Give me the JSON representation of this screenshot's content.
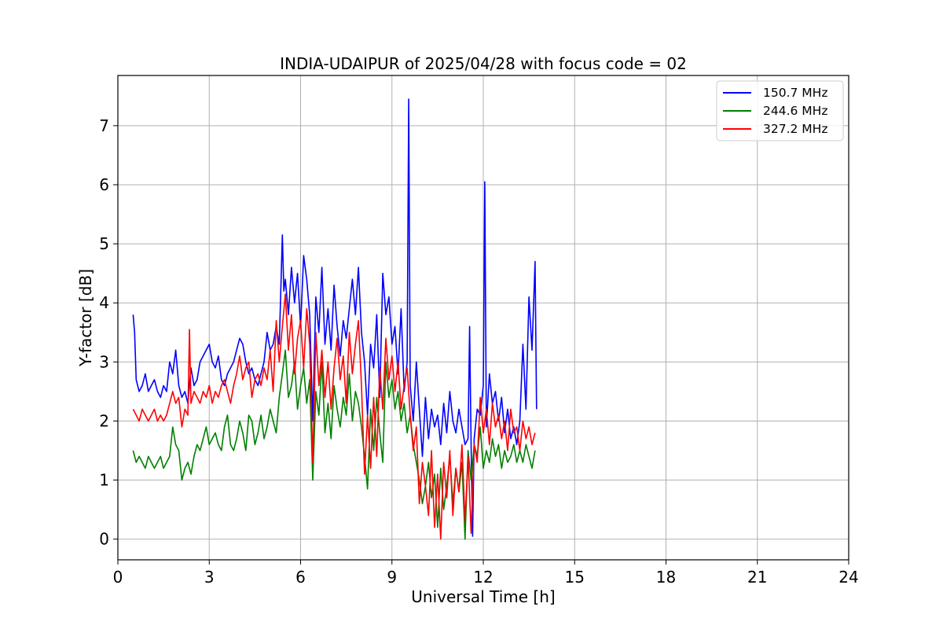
{
  "chart_data": {
    "type": "line",
    "title": "INDIA-UDAIPUR of 2025/04/28 with focus code = 02",
    "xlabel": "Universal Time [h]",
    "ylabel": "Y-factor [dB]",
    "xlim": [
      0,
      24
    ],
    "ylim": [
      -0.35,
      7.85
    ],
    "xticks": [
      0,
      3,
      6,
      9,
      12,
      15,
      18,
      21,
      24
    ],
    "yticks": [
      0,
      1,
      2,
      3,
      4,
      5,
      6,
      7
    ],
    "grid": true,
    "legend_position": "top-right",
    "series": [
      {
        "name": "150.7 MHz",
        "color": "#0000ff",
        "x": [
          0.5,
          0.55,
          0.6,
          0.7,
          0.8,
          0.9,
          1.0,
          1.1,
          1.2,
          1.3,
          1.4,
          1.5,
          1.6,
          1.7,
          1.8,
          1.9,
          2.0,
          2.1,
          2.2,
          2.3,
          2.4,
          2.5,
          2.6,
          2.7,
          2.8,
          2.9,
          3.0,
          3.1,
          3.2,
          3.3,
          3.4,
          3.5,
          3.6,
          3.7,
          3.8,
          3.9,
          4.0,
          4.1,
          4.2,
          4.3,
          4.4,
          4.5,
          4.6,
          4.7,
          4.8,
          4.9,
          5.0,
          5.1,
          5.2,
          5.3,
          5.4,
          5.45,
          5.5,
          5.6,
          5.7,
          5.8,
          5.9,
          6.0,
          6.1,
          6.2,
          6.3,
          6.4,
          6.5,
          6.6,
          6.7,
          6.8,
          6.9,
          7.0,
          7.1,
          7.2,
          7.3,
          7.4,
          7.5,
          7.6,
          7.7,
          7.8,
          7.9,
          8.0,
          8.1,
          8.2,
          8.3,
          8.4,
          8.5,
          8.6,
          8.7,
          8.8,
          8.9,
          9.0,
          9.1,
          9.2,
          9.3,
          9.4,
          9.5,
          9.55,
          9.6,
          9.7,
          9.8,
          9.9,
          10.0,
          10.1,
          10.2,
          10.3,
          10.4,
          10.5,
          10.6,
          10.7,
          10.8,
          10.9,
          11.0,
          11.1,
          11.2,
          11.3,
          11.4,
          11.5,
          11.55,
          11.6,
          11.65,
          11.7,
          11.8,
          11.9,
          12.0,
          12.05,
          12.1,
          12.2,
          12.3,
          12.4,
          12.5,
          12.6,
          12.7,
          12.8,
          12.9,
          13.0,
          13.1,
          13.2,
          13.3,
          13.4,
          13.5,
          13.6,
          13.7,
          13.75
        ],
        "values": [
          3.8,
          3.5,
          2.7,
          2.5,
          2.6,
          2.8,
          2.5,
          2.6,
          2.7,
          2.5,
          2.4,
          2.6,
          2.5,
          3.0,
          2.8,
          3.2,
          2.6,
          2.4,
          2.5,
          2.3,
          2.9,
          2.6,
          2.7,
          3.0,
          3.1,
          3.2,
          3.3,
          3.0,
          2.9,
          3.1,
          2.7,
          2.6,
          2.8,
          2.9,
          3.0,
          3.2,
          3.4,
          3.3,
          3.0,
          2.8,
          2.9,
          2.7,
          2.6,
          2.8,
          3.0,
          3.5,
          3.2,
          3.3,
          3.6,
          3.3,
          5.15,
          4.2,
          4.4,
          3.8,
          4.6,
          4.0,
          4.5,
          3.6,
          4.8,
          4.4,
          3.8,
          2.0,
          4.1,
          3.5,
          4.6,
          3.3,
          3.9,
          3.2,
          4.3,
          3.6,
          3.1,
          3.7,
          3.4,
          3.9,
          4.4,
          3.8,
          4.6,
          3.5,
          3.0,
          2.1,
          3.3,
          2.9,
          3.8,
          2.4,
          4.5,
          3.8,
          4.1,
          3.3,
          3.6,
          2.8,
          3.9,
          2.5,
          3.0,
          7.45,
          2.6,
          2.0,
          3.0,
          2.2,
          1.4,
          2.4,
          1.7,
          2.2,
          1.9,
          2.1,
          1.6,
          2.3,
          1.8,
          2.5,
          2.0,
          1.8,
          2.2,
          1.9,
          1.6,
          1.7,
          3.6,
          1.6,
          0.05,
          1.7,
          2.2,
          2.1,
          2.6,
          6.05,
          1.9,
          2.8,
          2.3,
          2.5,
          2.0,
          2.4,
          1.8,
          2.2,
          1.7,
          1.9,
          1.6,
          2.0,
          3.3,
          2.2,
          4.1,
          3.2,
          4.7,
          2.2
        ]
      },
      {
        "name": "244.6 MHz",
        "color": "#008000",
        "x": [
          0.5,
          0.6,
          0.7,
          0.8,
          0.9,
          1.0,
          1.1,
          1.2,
          1.3,
          1.4,
          1.5,
          1.6,
          1.7,
          1.8,
          1.9,
          2.0,
          2.1,
          2.2,
          2.3,
          2.4,
          2.5,
          2.6,
          2.7,
          2.8,
          2.9,
          3.0,
          3.1,
          3.2,
          3.3,
          3.4,
          3.5,
          3.6,
          3.7,
          3.8,
          3.9,
          4.0,
          4.1,
          4.2,
          4.3,
          4.4,
          4.5,
          4.6,
          4.7,
          4.8,
          4.9,
          5.0,
          5.1,
          5.2,
          5.3,
          5.4,
          5.5,
          5.6,
          5.7,
          5.8,
          5.9,
          6.0,
          6.1,
          6.2,
          6.3,
          6.4,
          6.5,
          6.6,
          6.7,
          6.8,
          6.9,
          7.0,
          7.1,
          7.2,
          7.3,
          7.4,
          7.5,
          7.6,
          7.7,
          7.8,
          7.9,
          8.0,
          8.1,
          8.2,
          8.3,
          8.4,
          8.5,
          8.6,
          8.7,
          8.8,
          8.9,
          9.0,
          9.1,
          9.2,
          9.3,
          9.4,
          9.5,
          9.6,
          9.7,
          9.8,
          9.9,
          10.0,
          10.1,
          10.2,
          10.3,
          10.4,
          10.5,
          10.6,
          10.7,
          10.8,
          10.9,
          11.0,
          11.1,
          11.2,
          11.3,
          11.4,
          11.5,
          11.6,
          11.7,
          11.8,
          11.9,
          12.0,
          12.1,
          12.2,
          12.3,
          12.4,
          12.5,
          12.6,
          12.7,
          12.8,
          12.9,
          13.0,
          13.1,
          13.2,
          13.3,
          13.4,
          13.5,
          13.6,
          13.7
        ],
        "values": [
          1.5,
          1.3,
          1.4,
          1.3,
          1.2,
          1.4,
          1.3,
          1.2,
          1.3,
          1.4,
          1.2,
          1.3,
          1.4,
          1.9,
          1.6,
          1.5,
          1.0,
          1.2,
          1.3,
          1.1,
          1.4,
          1.6,
          1.5,
          1.7,
          1.9,
          1.6,
          1.7,
          1.8,
          1.6,
          1.5,
          1.9,
          2.1,
          1.6,
          1.5,
          1.7,
          2.0,
          1.8,
          1.5,
          2.1,
          2.0,
          1.6,
          1.8,
          2.1,
          1.7,
          1.9,
          2.2,
          2.0,
          1.8,
          2.4,
          2.8,
          3.2,
          2.4,
          2.6,
          3.0,
          2.2,
          2.6,
          2.9,
          2.3,
          2.7,
          1.0,
          2.5,
          2.1,
          3.0,
          1.8,
          2.3,
          1.7,
          2.6,
          2.2,
          1.9,
          2.4,
          2.1,
          2.8,
          2.0,
          2.5,
          2.3,
          1.9,
          1.4,
          0.85,
          2.2,
          1.5,
          2.4,
          1.8,
          1.3,
          3.0,
          2.4,
          2.7,
          2.2,
          2.5,
          2.0,
          2.3,
          1.8,
          2.1,
          1.6,
          1.3,
          1.0,
          0.6,
          0.9,
          1.3,
          0.7,
          1.1,
          0.2,
          1.2,
          0.5,
          0.9,
          1.4,
          0.6,
          1.2,
          0.8,
          1.3,
          0.0,
          1.5,
          1.0,
          1.6,
          1.4,
          1.9,
          1.2,
          1.5,
          1.3,
          1.7,
          1.4,
          1.6,
          1.2,
          1.5,
          1.3,
          1.4,
          1.6,
          1.3,
          1.5,
          1.3,
          1.6,
          1.4,
          1.2,
          1.5
        ]
      },
      {
        "name": "327.2 MHz",
        "color": "#ff0000",
        "x": [
          0.5,
          0.6,
          0.7,
          0.8,
          0.9,
          1.0,
          1.1,
          1.2,
          1.3,
          1.4,
          1.5,
          1.6,
          1.7,
          1.8,
          1.9,
          2.0,
          2.1,
          2.2,
          2.3,
          2.35,
          2.4,
          2.5,
          2.6,
          2.7,
          2.8,
          2.9,
          3.0,
          3.1,
          3.2,
          3.3,
          3.4,
          3.5,
          3.6,
          3.7,
          3.8,
          3.9,
          4.0,
          4.1,
          4.2,
          4.3,
          4.4,
          4.5,
          4.6,
          4.7,
          4.8,
          4.9,
          5.0,
          5.1,
          5.2,
          5.3,
          5.4,
          5.5,
          5.6,
          5.7,
          5.8,
          5.9,
          6.0,
          6.1,
          6.2,
          6.3,
          6.4,
          6.5,
          6.6,
          6.7,
          6.8,
          6.9,
          7.0,
          7.1,
          7.2,
          7.3,
          7.4,
          7.5,
          7.6,
          7.7,
          7.8,
          7.9,
          8.0,
          8.1,
          8.2,
          8.3,
          8.4,
          8.5,
          8.6,
          8.7,
          8.8,
          8.9,
          9.0,
          9.1,
          9.2,
          9.3,
          9.4,
          9.5,
          9.6,
          9.7,
          9.8,
          9.9,
          10.0,
          10.1,
          10.2,
          10.3,
          10.4,
          10.5,
          10.6,
          10.7,
          10.8,
          10.9,
          11.0,
          11.1,
          11.2,
          11.3,
          11.4,
          11.5,
          11.6,
          11.7,
          11.8,
          11.9,
          12.0,
          12.1,
          12.2,
          12.3,
          12.4,
          12.5,
          12.6,
          12.7,
          12.8,
          12.9,
          13.0,
          13.1,
          13.2,
          13.3,
          13.4,
          13.5,
          13.6,
          13.7
        ],
        "values": [
          2.2,
          2.1,
          2.0,
          2.2,
          2.1,
          2.0,
          2.1,
          2.2,
          2.0,
          2.1,
          2.0,
          2.1,
          2.3,
          2.5,
          2.3,
          2.4,
          1.9,
          2.2,
          2.1,
          3.55,
          2.3,
          2.5,
          2.4,
          2.3,
          2.5,
          2.4,
          2.6,
          2.3,
          2.5,
          2.4,
          2.6,
          2.7,
          2.5,
          2.3,
          2.6,
          2.8,
          3.1,
          2.7,
          2.9,
          3.0,
          2.4,
          2.7,
          2.8,
          2.6,
          2.9,
          2.7,
          3.2,
          2.5,
          3.7,
          3.0,
          3.6,
          4.15,
          3.2,
          3.8,
          2.8,
          3.4,
          3.7,
          2.9,
          3.9,
          3.3,
          1.3,
          3.5,
          2.6,
          3.2,
          2.4,
          3.0,
          2.2,
          2.9,
          3.4,
          2.7,
          3.1,
          2.3,
          3.5,
          2.8,
          3.3,
          3.7,
          2.6,
          1.1,
          2.1,
          1.2,
          2.4,
          1.4,
          2.9,
          2.2,
          3.4,
          2.7,
          3.1,
          2.5,
          3.0,
          2.2,
          2.6,
          2.9,
          2.1,
          1.5,
          1.9,
          0.6,
          1.3,
          0.9,
          0.4,
          1.5,
          0.2,
          1.1,
          0.0,
          1.3,
          0.7,
          1.5,
          0.4,
          1.2,
          0.8,
          1.6,
          0.3,
          1.4,
          0.1,
          1.6,
          1.3,
          2.4,
          1.8,
          2.2,
          1.6,
          2.3,
          1.9,
          2.1,
          1.7,
          2.0,
          1.5,
          2.2,
          1.8,
          1.9,
          1.5,
          2.0,
          1.7,
          1.9,
          1.6,
          1.8
        ]
      }
    ]
  }
}
